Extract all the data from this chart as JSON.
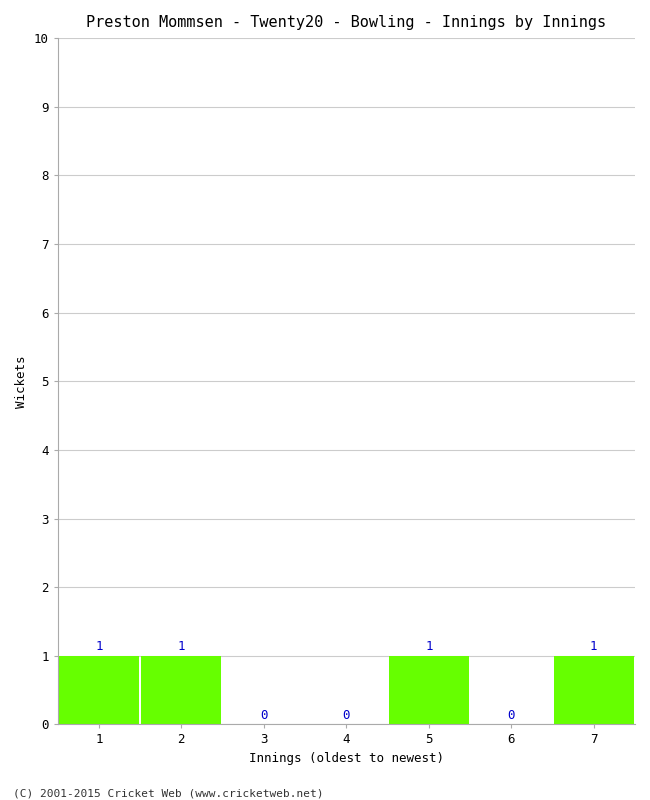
{
  "title": "Preston Mommsen - Twenty20 - Bowling - Innings by Innings",
  "xlabel": "Innings (oldest to newest)",
  "ylabel": "Wickets",
  "categories": [
    1,
    2,
    3,
    4,
    5,
    6,
    7
  ],
  "values": [
    1,
    1,
    0,
    0,
    1,
    0,
    1
  ],
  "bar_color": "#66ff00",
  "bar_edge_color": "#66ff00",
  "label_color": "#0000cc",
  "ylim": [
    0,
    10
  ],
  "yticks": [
    0,
    1,
    2,
    3,
    4,
    5,
    6,
    7,
    8,
    9,
    10
  ],
  "grid_color": "#cccccc",
  "background_color": "#ffffff",
  "title_fontsize": 11,
  "label_fontsize": 9,
  "tick_fontsize": 9,
  "value_label_fontsize": 9,
  "footer": "(C) 2001-2015 Cricket Web (www.cricketweb.net)",
  "footer_fontsize": 8,
  "bar_width": 0.97
}
